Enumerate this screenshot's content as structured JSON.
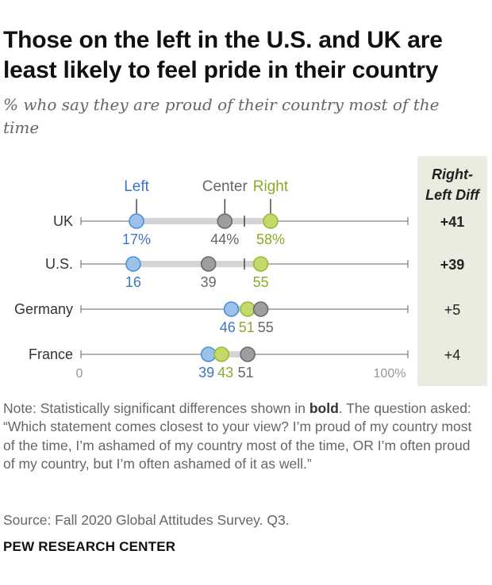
{
  "title": "Those on the left in the U.S. and UK are least likely to feel pride in their country",
  "subtitle": "% who say they are proud of their country most of the time",
  "note": {
    "prefix": "Note: Statistically significant differences shown in ",
    "bold_word": "bold",
    "suffix": ". The question asked: “Which statement comes closest to your view? I’m proud of my country most of the time, I’m ashamed of my country most of the time, OR I’m often proud of my country, but I’m often ashamed of it as well.”"
  },
  "source": "Source: Fall 2020 Global Attitudes Survey. Q3.",
  "logo": "PEW RESEARCH CENTER",
  "colors": {
    "left": "#4a90d9",
    "left_fill": "#9cc2ec",
    "center": "#6b6b6b",
    "center_fill": "#9e9e9e",
    "right": "#9ab83a",
    "right_fill": "#c5d96a",
    "diff_bg": "#ebebdf",
    "range_bar": "#d4d4d4",
    "axis": "#666666",
    "left_text": "#3b76c4",
    "right_text": "#8aab2a"
  },
  "chart_data": {
    "type": "dot",
    "title": "Those on the left in the U.S. and UK are least likely to feel pride in their country",
    "xlim": [
      0,
      100
    ],
    "axis_labels": [
      "0",
      "100%"
    ],
    "legend": [
      "Left",
      "Center",
      "Right"
    ],
    "diff_header": "Right-Left Diff",
    "series_order": [
      "left",
      "center",
      "right"
    ],
    "rows": [
      {
        "country": "UK",
        "left": 17,
        "center": 44,
        "right": 58,
        "labels": {
          "left": "17%",
          "center": "44%",
          "right": "58%"
        },
        "midpoint": 50,
        "diff": "+41",
        "significant": true
      },
      {
        "country": "U.S.",
        "left": 16,
        "center": 39,
        "right": 55,
        "labels": {
          "left": "16",
          "center": "39",
          "right": "55"
        },
        "midpoint": 50,
        "diff": "+39",
        "significant": true
      },
      {
        "country": "Germany",
        "left": 46,
        "center": 55,
        "right": 51,
        "labels": {
          "left": "46",
          "center": "55",
          "right": "51"
        },
        "midpoint": null,
        "diff": "+5",
        "significant": false
      },
      {
        "country": "France",
        "left": 39,
        "center": 51,
        "right": 43,
        "labels": {
          "left": "39",
          "center": "51",
          "right": "43"
        },
        "midpoint": null,
        "diff": "+4",
        "significant": false
      }
    ]
  }
}
